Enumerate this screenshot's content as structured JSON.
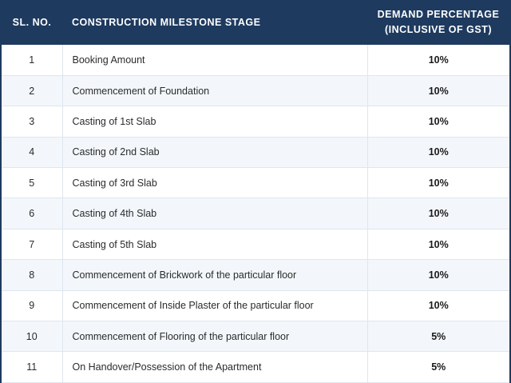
{
  "table": {
    "headers": {
      "sl_no": "SL. NO.",
      "stage": "CONSTRUCTION MILESTONE STAGE",
      "demand_line1": "DEMAND PERCENTAGE",
      "demand_line2": "(INCLUSIVE OF GST)"
    },
    "rows": [
      {
        "sl": "1",
        "stage": "Booking Amount",
        "demand": "10%"
      },
      {
        "sl": "2",
        "stage": "Commencement of Foundation",
        "demand": "10%"
      },
      {
        "sl": "3",
        "stage": "Casting of 1st Slab",
        "demand": "10%"
      },
      {
        "sl": "4",
        "stage": "Casting of 2nd Slab",
        "demand": "10%"
      },
      {
        "sl": "5",
        "stage": "Casting of 3rd Slab",
        "demand": "10%"
      },
      {
        "sl": "6",
        "stage": "Casting of 4th Slab",
        "demand": "10%"
      },
      {
        "sl": "7",
        "stage": "Casting of 5th Slab",
        "demand": "10%"
      },
      {
        "sl": "8",
        "stage": "Commencement of Brickwork of the particular floor",
        "demand": "10%"
      },
      {
        "sl": "9",
        "stage": "Commencement of Inside Plaster of the particular floor",
        "demand": "10%"
      },
      {
        "sl": "10",
        "stage": "Commencement of Flooring of the particular floor",
        "demand": "5%"
      },
      {
        "sl": "11",
        "stage": "On Handover/Possession of the Apartment",
        "demand": "5%"
      }
    ]
  },
  "colors": {
    "header_background": "#1e3a5f",
    "header_text": "#ffffff",
    "row_alt": "#f3f7fb"
  }
}
